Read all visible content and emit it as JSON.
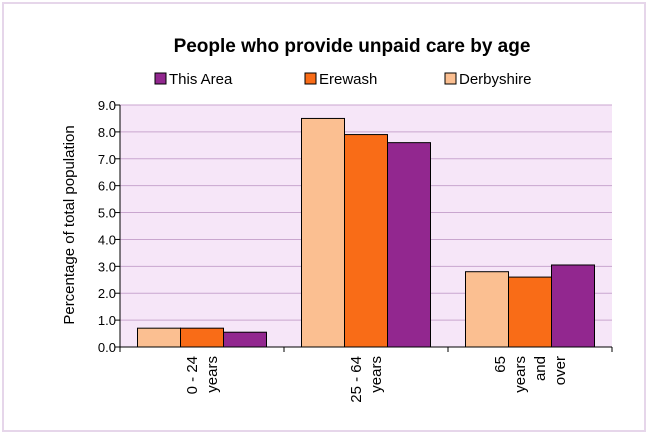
{
  "chart_data": {
    "type": "bar",
    "title": "People who provide unpaid care by age",
    "ylabel": "Percentage of total population",
    "xlabel": "",
    "ylim": [
      0,
      9.0
    ],
    "ytick_step": 1.0,
    "yticks": [
      "0.0",
      "1.0",
      "2.0",
      "3.0",
      "4.0",
      "5.0",
      "6.0",
      "7.0",
      "8.0",
      "9.0"
    ],
    "grid": true,
    "legend_position": "top",
    "categories": [
      [
        "0 - 24",
        "years"
      ],
      [
        "25 - 64",
        "years"
      ],
      [
        "65",
        "years",
        "and",
        "over"
      ]
    ],
    "series": [
      {
        "name": "Derbyshire",
        "color": "#fbbf91",
        "values": [
          0.7,
          8.5,
          2.8
        ]
      },
      {
        "name": "Erewash",
        "color": "#f96c17",
        "values": [
          0.7,
          7.9,
          2.6
        ]
      },
      {
        "name": "This Area",
        "color": "#92278f",
        "values": [
          0.55,
          7.6,
          3.05
        ]
      }
    ],
    "legend_order": [
      "This Area",
      "Erewash",
      "Derbyshire"
    ],
    "plot_background": "#f6e6f8",
    "grid_color": "#c9a6cf"
  }
}
